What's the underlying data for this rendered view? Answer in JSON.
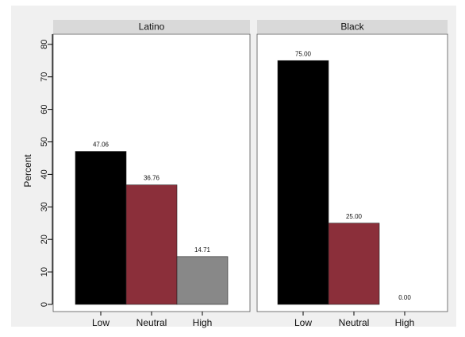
{
  "chart_data": {
    "type": "bar",
    "ylabel": "Percent",
    "ylim": [
      0,
      80
    ],
    "yticks": [
      0,
      10,
      20,
      30,
      40,
      50,
      60,
      70,
      80
    ],
    "grid": false,
    "categories": [
      "Low",
      "Neutral",
      "High"
    ],
    "colors": {
      "Low": "#000000",
      "Neutral": "#8b2f3a",
      "High": "#888888",
      "page_background": "#f0f0f0",
      "facet_header": "#d9d9d9",
      "plot_background": "#ffffff"
    },
    "panels": [
      {
        "title": "Latino",
        "values": [
          47.06,
          36.76,
          14.71
        ],
        "labels": [
          "47.06",
          "36.76",
          "14.71"
        ]
      },
      {
        "title": "Black",
        "values": [
          75.0,
          25.0,
          0.0
        ],
        "labels": [
          "75.00",
          "25.00",
          "0.00"
        ]
      }
    ]
  }
}
